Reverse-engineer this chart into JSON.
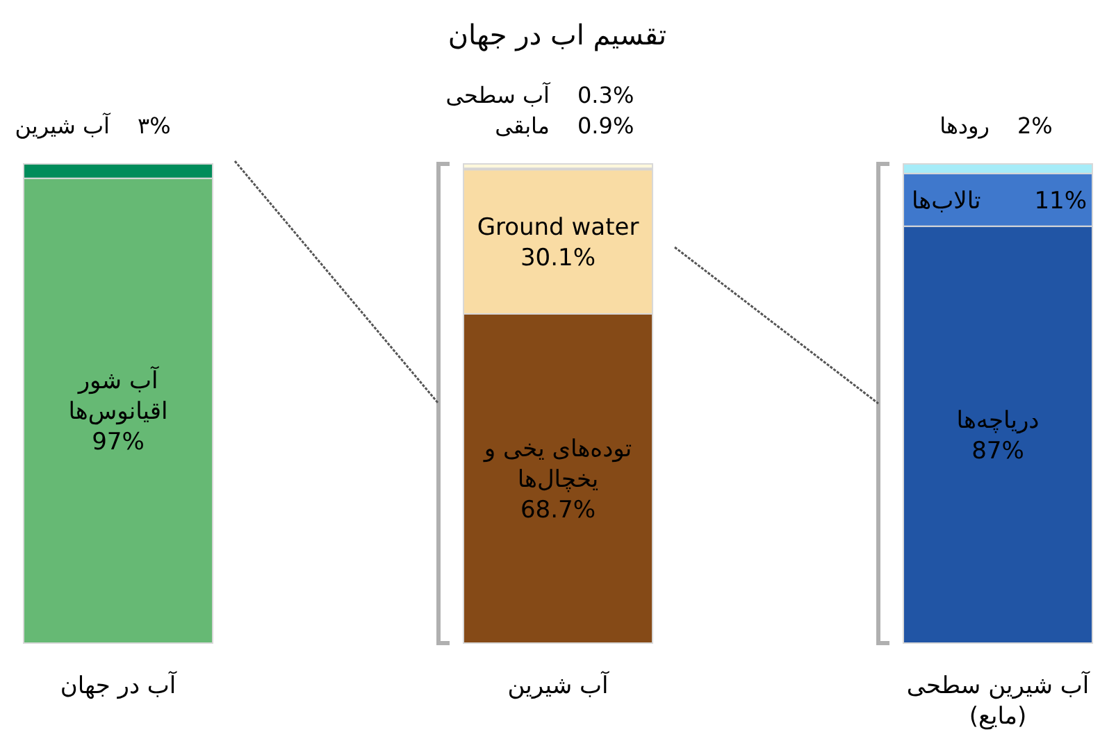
{
  "chart_data": {
    "type": "bar",
    "stacked": true,
    "title": "تقسیم اب در جهان",
    "categories": [
      "آب در جهان",
      "آب شیرین",
      "آب شیرین سطحی (مایع)"
    ],
    "series": [
      {
        "name": "آب شور اقیانوس‌ها",
        "color": "#66b974",
        "values": [
          97,
          null,
          null
        ],
        "value_labels": [
          "97%",
          null,
          null
        ]
      },
      {
        "name": "آب شیرین",
        "color": "#008c5a",
        "values": [
          3,
          null,
          null
        ],
        "value_labels": [
          "۳%",
          null,
          null
        ]
      },
      {
        "name": "توده‌های یخی و یخچال‌ها",
        "color": "#854a17",
        "values": [
          null,
          68.7,
          null
        ],
        "value_labels": [
          null,
          "68.7%",
          null
        ]
      },
      {
        "name": "Ground water",
        "color": "#f9dca4",
        "values": [
          null,
          30.1,
          null
        ],
        "value_labels": [
          null,
          "30.1%",
          null
        ]
      },
      {
        "name": "آب سطحی",
        "color": "#a0401a",
        "values": [
          null,
          0.3,
          null
        ],
        "value_labels": [
          null,
          "0.3%",
          null
        ]
      },
      {
        "name": "مابقی",
        "color": "#fff8dc",
        "values": [
          null,
          0.9,
          null
        ],
        "value_labels": [
          null,
          "0.9%",
          null
        ]
      },
      {
        "name": "دریاچه‌ها",
        "color": "#2155a5",
        "values": [
          null,
          null,
          87
        ],
        "value_labels": [
          null,
          null,
          "87%"
        ]
      },
      {
        "name": "تالاب‌ها",
        "color": "#3f78cc",
        "values": [
          null,
          null,
          11
        ],
        "value_labels": [
          null,
          null,
          "11%"
        ]
      },
      {
        "name": "رودها",
        "color": "#a6ecf8",
        "values": [
          null,
          null,
          2
        ],
        "value_labels": [
          null,
          null,
          "2%"
        ]
      }
    ]
  }
}
